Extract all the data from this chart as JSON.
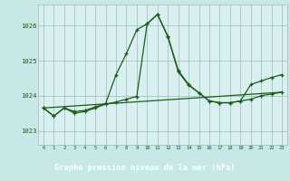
{
  "title": "Graphe pression niveau de la mer (hPa)",
  "bg_outer": "#c8e8e8",
  "bg_plot": "#daf0f0",
  "line_color": "#1a5c1a",
  "grid_color": "#99bbbb",
  "label_bg": "#2d6b2d",
  "label_fg": "#ffffff",
  "xlim": [
    -0.5,
    23.5
  ],
  "ylim": [
    1022.6,
    1026.6
  ],
  "yticks": [
    1023,
    1024,
    1025,
    1026
  ],
  "x_ticks": [
    0,
    1,
    2,
    3,
    4,
    5,
    6,
    7,
    8,
    9,
    10,
    11,
    12,
    13,
    14,
    15,
    16,
    17,
    18,
    19,
    20,
    21,
    22,
    23
  ],
  "series1_x": [
    0,
    1,
    2,
    3,
    4,
    5,
    6,
    7,
    8,
    9,
    10,
    11,
    12,
    13,
    14,
    15,
    16,
    17,
    18,
    19,
    20,
    21,
    22,
    23
  ],
  "series1_y": [
    1023.65,
    1023.42,
    1023.65,
    1023.55,
    1023.58,
    1023.68,
    1023.78,
    1024.6,
    1025.2,
    1025.88,
    1026.05,
    1026.32,
    1025.7,
    1024.72,
    1024.32,
    1024.08,
    1023.85,
    1023.8,
    1023.8,
    1023.85,
    1024.32,
    1024.42,
    1024.52,
    1024.6
  ],
  "series2_x": [
    0,
    1,
    2,
    3,
    4,
    5,
    6,
    7,
    8,
    9,
    10,
    11,
    12,
    13,
    14,
    15,
    16,
    17,
    18,
    19,
    20,
    21,
    22,
    23
  ],
  "series2_y": [
    1023.65,
    1023.42,
    1023.65,
    1023.5,
    1023.55,
    1023.65,
    1023.76,
    1023.82,
    1023.9,
    1023.98,
    1026.05,
    1026.32,
    1025.68,
    1024.68,
    1024.3,
    1024.08,
    1023.85,
    1023.8,
    1023.8,
    1023.85,
    1023.9,
    1024.0,
    1024.05,
    1024.1
  ],
  "series3_x": [
    0,
    23
  ],
  "series3_y": [
    1023.65,
    1024.1
  ]
}
